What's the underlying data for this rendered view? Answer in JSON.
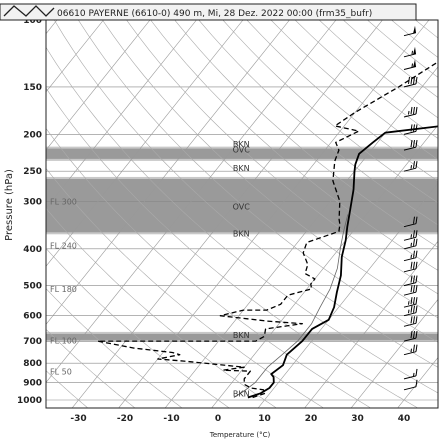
{
  "chart_data": {
    "type": "line",
    "title": "06610 PAYERNE (6610-0) 490 m, Mi, 28 Dez. 2022 00:00 (frm35_bufr)",
    "xlabel": "Temperature (°C)",
    "ylabel": "Pressure (hPa)",
    "xlim": [
      -35,
      47
    ],
    "ylim": [
      1050,
      100
    ],
    "y_scale": "log",
    "x_ticks": [
      "-30",
      "-20",
      "-10",
      "0",
      "10",
      "20",
      "30",
      "40"
    ],
    "y_ticks": [
      "100",
      "150",
      "200",
      "250",
      "300",
      "400",
      "500",
      "600",
      "700",
      "800",
      "900",
      "1000"
    ],
    "flight_levels": [
      {
        "label": "FL 300",
        "p": 300
      },
      {
        "label": "FL 240",
        "p": 392
      },
      {
        "label": "FL 180",
        "p": 510
      },
      {
        "label": "FL 100",
        "p": 698
      },
      {
        "label": "FL 50",
        "p": 842
      }
    ],
    "cloud_bands": [
      {
        "p_top": 218,
        "p_bottom": 232
      },
      {
        "p_top": 262,
        "p_bottom": 362
      },
      {
        "p_top": 670,
        "p_bottom": 695
      }
    ],
    "cloud_labels": [
      {
        "label": "BKN",
        "p": 212,
        "x": 5
      },
      {
        "label": "OVC",
        "p": 219,
        "x": 5
      },
      {
        "label": "BKN",
        "p": 245,
        "x": 5
      },
      {
        "label": "OVC",
        "p": 310,
        "x": 5
      },
      {
        "label": "BKN",
        "p": 365,
        "x": 5
      },
      {
        "label": "BKN",
        "p": 675,
        "x": 5
      },
      {
        "label": "BKN",
        "p": 960,
        "x": 5
      }
    ],
    "series": [
      {
        "style": "solid",
        "color": "#000000",
        "width": 1.8,
        "points": [
          [
            21,
            100
          ],
          [
            18,
            112
          ],
          [
            17,
            125
          ],
          [
            14,
            140
          ],
          [
            12,
            150
          ],
          [
            6,
            165
          ],
          [
            3,
            180
          ],
          [
            1,
            190
          ],
          [
            -10,
            198
          ],
          [
            -11,
            210
          ],
          [
            -12,
            225
          ],
          [
            -11,
            240
          ],
          [
            -10,
            250
          ],
          [
            -7,
            280
          ],
          [
            -4,
            320
          ],
          [
            -2,
            350
          ],
          [
            0,
            380
          ],
          [
            2,
            420
          ],
          [
            5,
            470
          ],
          [
            7,
            520
          ],
          [
            9,
            570
          ],
          [
            10,
            615
          ],
          [
            8,
            650
          ],
          [
            8,
            700
          ],
          [
            7,
            760
          ],
          [
            8,
            810
          ],
          [
            7,
            855
          ],
          [
            8,
            870
          ],
          [
            9,
            900
          ],
          [
            9,
            930
          ],
          [
            8,
            960
          ],
          [
            6,
            985
          ]
        ]
      },
      {
        "style": "solid",
        "color": "#666666",
        "width": 0.8,
        "points": [
          [
            -4,
            325
          ],
          [
            -2,
            360
          ],
          [
            0,
            395
          ],
          [
            3,
            450
          ],
          [
            5,
            510
          ],
          [
            6,
            570
          ],
          [
            7,
            630
          ],
          [
            7,
            700
          ],
          [
            6,
            760
          ],
          [
            5,
            820
          ],
          [
            5,
            860
          ],
          [
            5,
            900
          ],
          [
            4,
            950
          ],
          [
            3,
            985
          ]
        ]
      },
      {
        "style": "dashed",
        "color": "#000000",
        "width": 1.3,
        "points": [
          [
            -4,
            100
          ],
          [
            -10,
            125
          ],
          [
            -15,
            150
          ],
          [
            -20,
            175
          ],
          [
            -22,
            190
          ],
          [
            -16,
            196
          ],
          [
            -19,
            210
          ],
          [
            -17,
            220
          ],
          [
            -16,
            235
          ],
          [
            -13,
            265
          ],
          [
            -8,
            300
          ],
          [
            -5,
            335
          ],
          [
            -4,
            345
          ],
          [
            -3,
            360
          ],
          [
            -8,
            385
          ],
          [
            -7,
            410
          ],
          [
            -4,
            440
          ],
          [
            -3,
            465
          ],
          [
            0,
            480
          ],
          [
            0,
            495
          ],
          [
            1,
            510
          ],
          [
            -3,
            530
          ],
          [
            -3,
            560
          ],
          [
            -5,
            580
          ],
          [
            -10,
            580
          ],
          [
            -14,
            600
          ],
          [
            -3,
            620
          ],
          [
            5,
            630
          ],
          [
            -2,
            650
          ],
          [
            -1,
            680
          ],
          [
            -2,
            700
          ],
          [
            -36,
            700
          ],
          [
            -27,
            730
          ],
          [
            -18,
            750
          ],
          [
            -16,
            760
          ],
          [
            -20,
            780
          ],
          [
            -14,
            790
          ],
          [
            0,
            820
          ],
          [
            -4,
            835
          ],
          [
            2,
            840
          ],
          [
            2,
            880
          ],
          [
            3,
            910
          ],
          [
            5,
            930
          ],
          [
            8,
            940
          ],
          [
            9,
            960
          ],
          [
            7,
            985
          ]
        ]
      }
    ],
    "barbs": [
      {
        "p": 100,
        "speed": 50
      },
      {
        "p": 110,
        "speed": 50
      },
      {
        "p": 125,
        "speed": 55
      },
      {
        "p": 135,
        "speed": 55
      },
      {
        "p": 150,
        "speed": 40
      },
      {
        "p": 180,
        "speed": 35
      },
      {
        "p": 200,
        "speed": 30
      },
      {
        "p": 220,
        "speed": 30
      },
      {
        "p": 250,
        "speed": 25
      },
      {
        "p": 350,
        "speed": 20
      },
      {
        "p": 380,
        "speed": 25
      },
      {
        "p": 400,
        "speed": 25
      },
      {
        "p": 430,
        "speed": 25
      },
      {
        "p": 460,
        "speed": 30
      },
      {
        "p": 500,
        "speed": 30
      },
      {
        "p": 530,
        "speed": 30
      },
      {
        "p": 570,
        "speed": 35
      },
      {
        "p": 600,
        "speed": 35
      },
      {
        "p": 640,
        "speed": 30
      },
      {
        "p": 700,
        "speed": 30
      },
      {
        "p": 760,
        "speed": 25
      },
      {
        "p": 880,
        "speed": 15
      },
      {
        "p": 940,
        "speed": 10
      }
    ]
  }
}
